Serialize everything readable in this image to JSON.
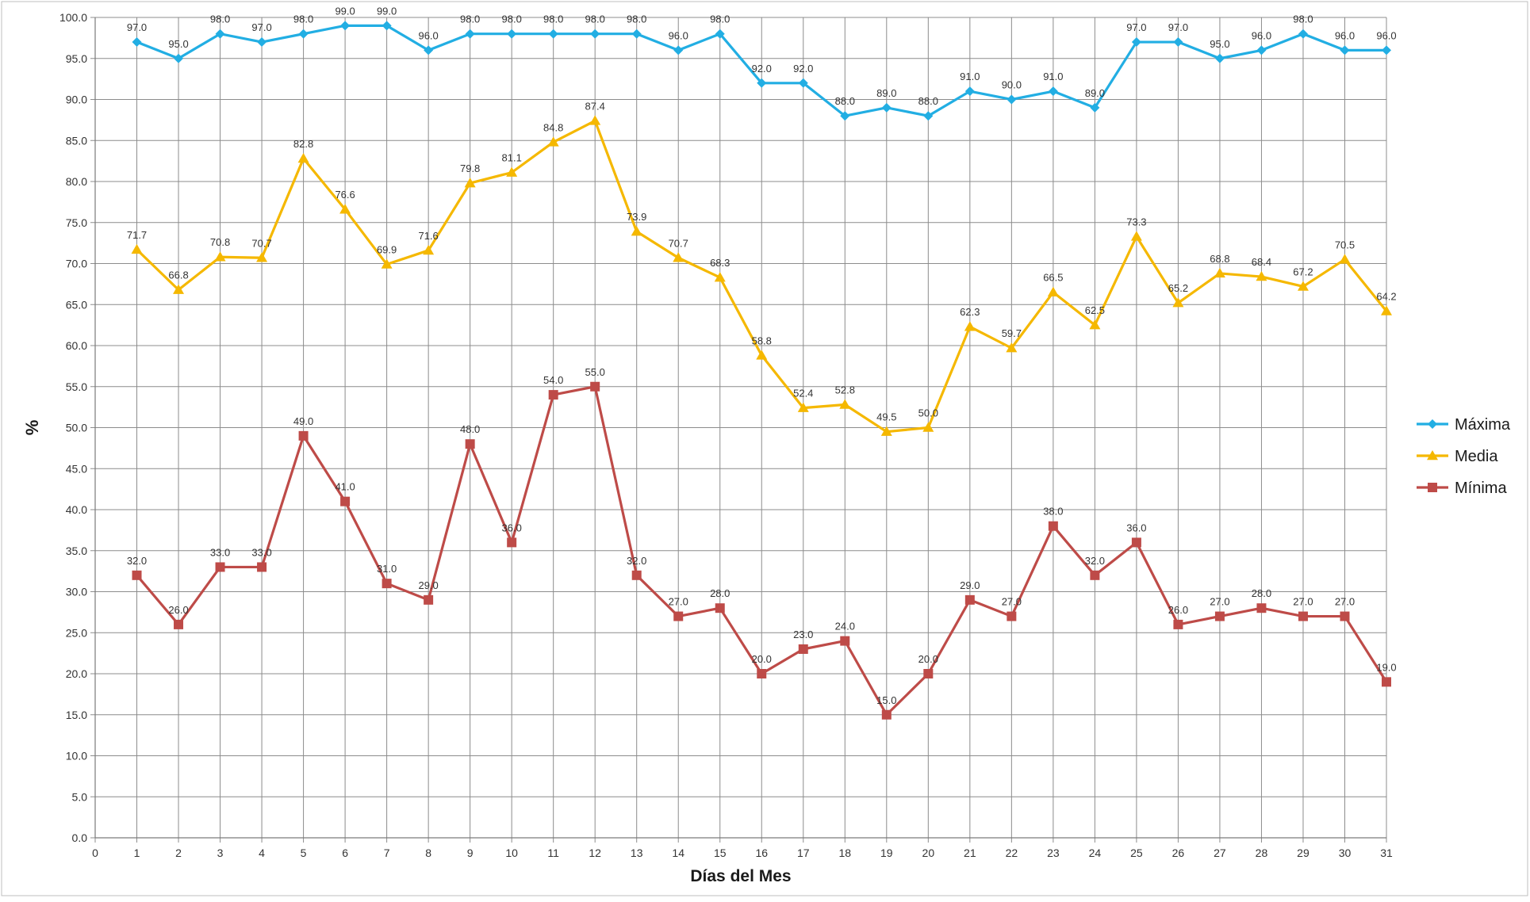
{
  "chart_data": {
    "type": "line",
    "title": "",
    "xlabel": "Días del Mes",
    "ylabel": "%",
    "ylim": [
      0,
      100
    ],
    "y_tick_step": 5,
    "xlim": [
      0,
      31
    ],
    "grid": true,
    "legend_position": "right",
    "x": [
      1,
      2,
      3,
      4,
      5,
      6,
      7,
      8,
      9,
      10,
      11,
      12,
      13,
      14,
      15,
      16,
      17,
      18,
      19,
      20,
      21,
      22,
      23,
      24,
      25,
      26,
      27,
      28,
      29,
      30,
      31
    ],
    "series": [
      {
        "name": "Máxima",
        "color": "#22aee3",
        "marker": "diamond",
        "values": [
          97.0,
          95.0,
          98.0,
          97.0,
          98.0,
          99.0,
          99.0,
          96.0,
          98.0,
          98.0,
          98.0,
          98.0,
          98.0,
          96.0,
          98.0,
          92.0,
          92.0,
          88.0,
          89.0,
          88.0,
          91.0,
          90.0,
          91.0,
          89.0,
          97.0,
          97.0,
          95.0,
          96.0,
          98.0,
          96.0,
          96.0
        ]
      },
      {
        "name": "Media",
        "color": "#f5b800",
        "marker": "triangle",
        "values": [
          71.7,
          66.8,
          70.8,
          70.7,
          82.8,
          76.6,
          69.9,
          71.6,
          79.8,
          81.1,
          84.8,
          87.4,
          73.9,
          70.7,
          68.3,
          58.8,
          52.4,
          52.8,
          49.5,
          50.0,
          62.3,
          59.7,
          66.5,
          62.5,
          73.3,
          65.2,
          68.8,
          68.4,
          67.2,
          70.5,
          64.2
        ]
      },
      {
        "name": "Mínima",
        "color": "#be4b48",
        "marker": "square",
        "values": [
          32.0,
          26.0,
          33.0,
          33.0,
          49.0,
          41.0,
          31.0,
          29.0,
          48.0,
          36.0,
          54.0,
          55.0,
          32.0,
          27.0,
          28.0,
          20.0,
          23.0,
          24.0,
          15.0,
          20.0,
          29.0,
          27.0,
          38.0,
          32.0,
          36.0,
          26.0,
          27.0,
          28.0,
          27.0,
          27.0,
          19.0
        ]
      }
    ]
  }
}
